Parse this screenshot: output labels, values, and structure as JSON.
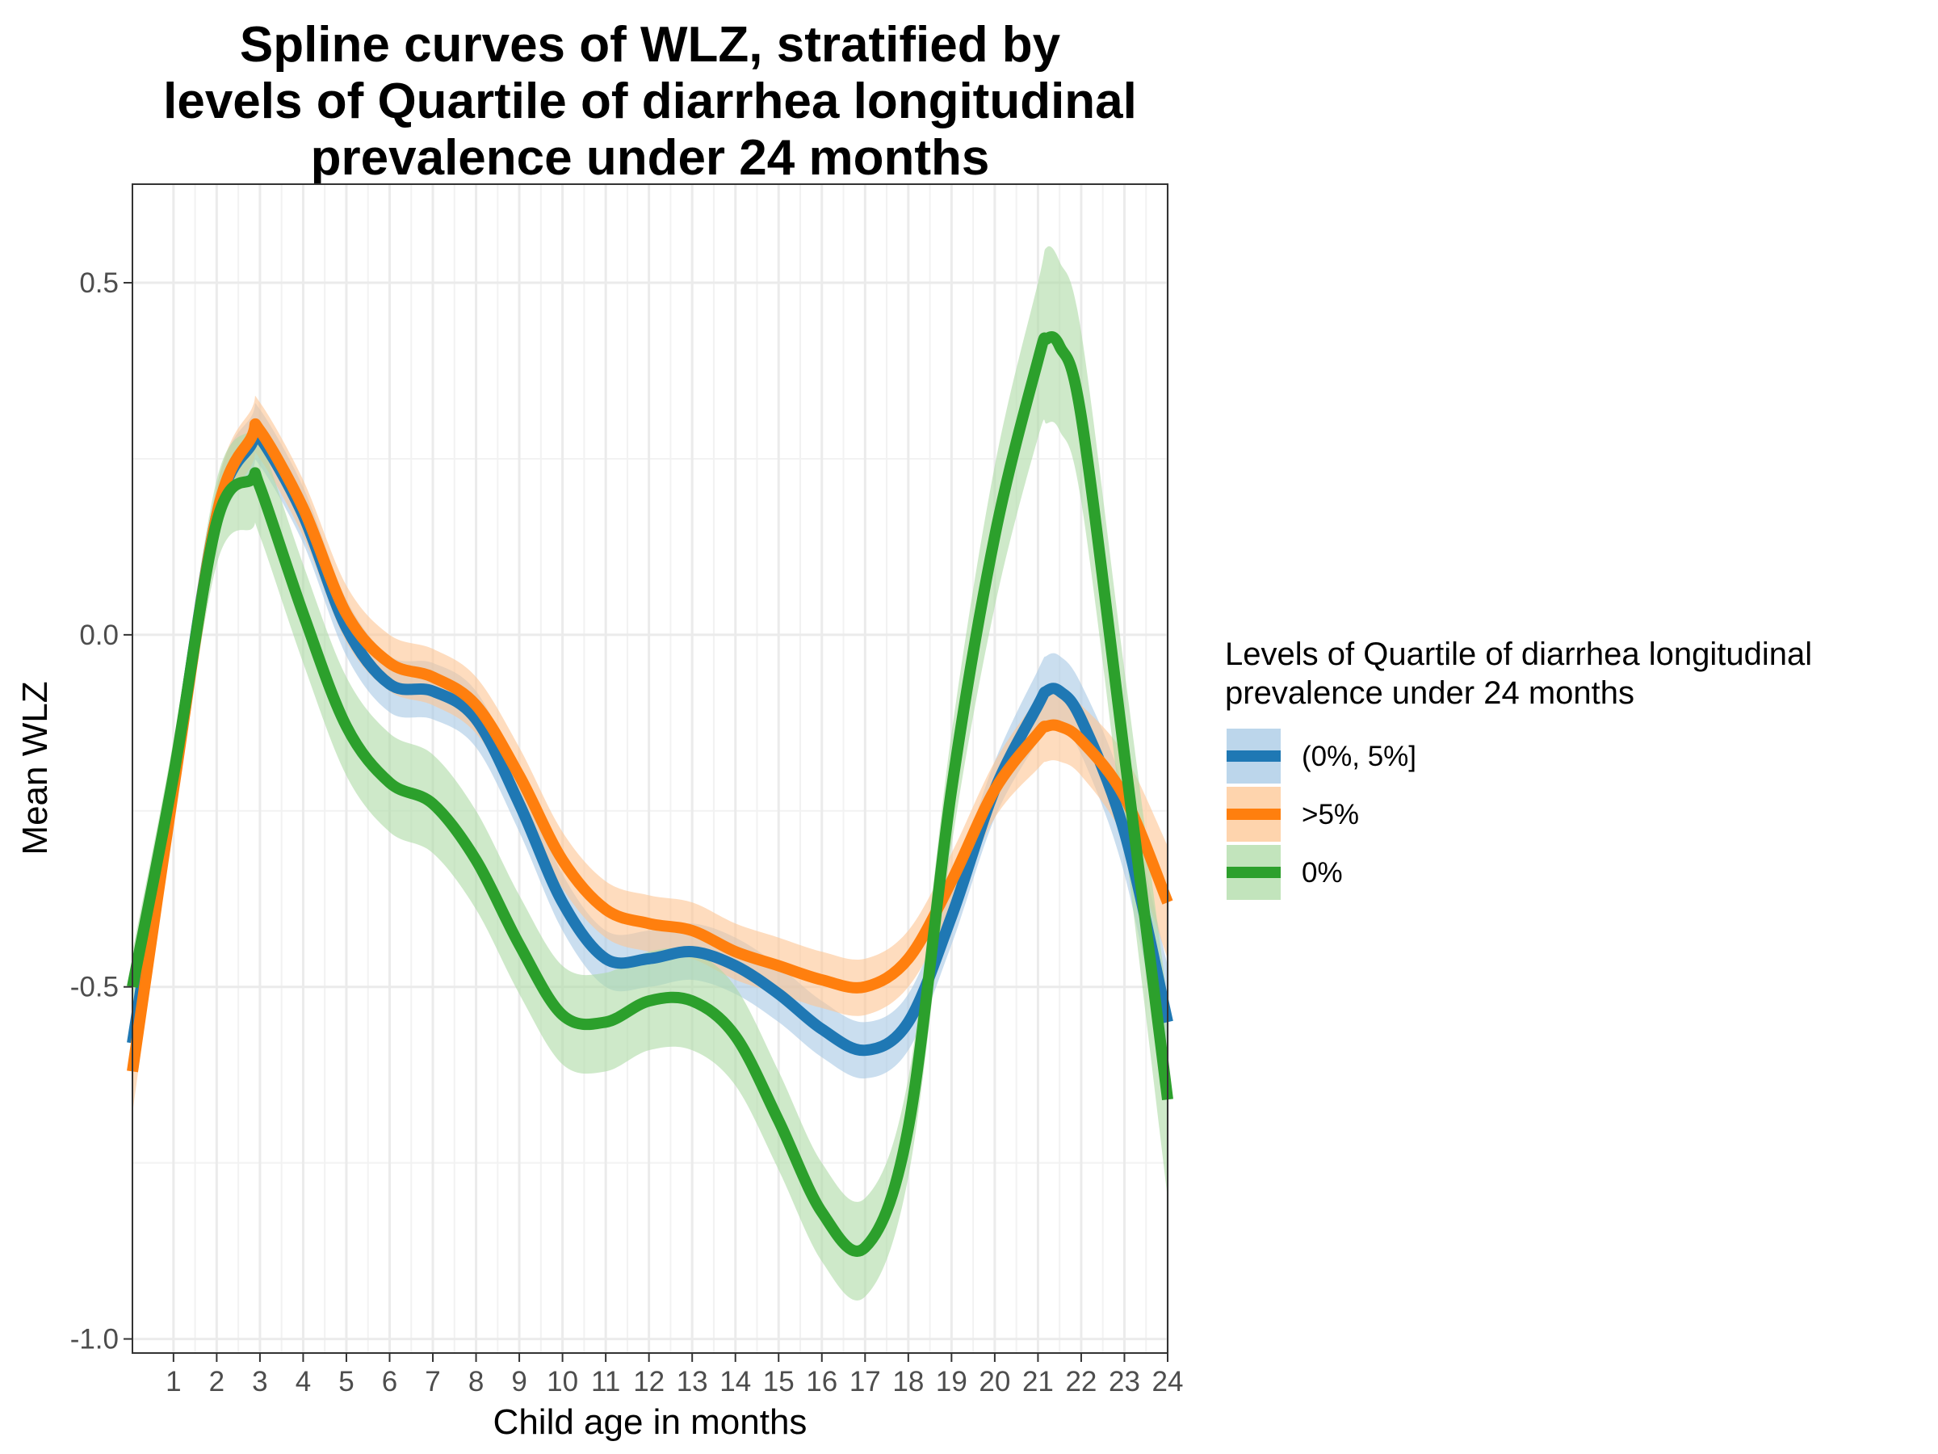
{
  "chart_data": {
    "type": "line",
    "title_lines": [
      "Spline curves of WLZ, stratified by",
      "levels of Quartile of diarrhea longitudinal",
      "prevalence under 24 months"
    ],
    "xlabel": "Child age in months",
    "ylabel": "Mean WLZ",
    "xlim": [
      0.05,
      24
    ],
    "ylim": [
      -1.02,
      0.64
    ],
    "x_ticks": [
      1,
      2,
      3,
      4,
      5,
      6,
      7,
      8,
      9,
      10,
      11,
      12,
      13,
      14,
      15,
      16,
      17,
      18,
      19,
      20,
      21,
      22,
      23,
      24
    ],
    "x_tick_labels": [
      "1",
      "2",
      "3",
      "4",
      "5",
      "6",
      "7",
      "8",
      "9",
      "10",
      "11",
      "12",
      "13",
      "14",
      "15",
      "16",
      "17",
      "18",
      "19",
      "20",
      "21",
      "22",
      "23",
      "24"
    ],
    "y_ticks": [
      -1.0,
      -0.5,
      0.0,
      0.5
    ],
    "y_tick_labels": [
      "-1.0",
      "-0.5",
      "0.0",
      "0.5"
    ],
    "grid": true,
    "legend": {
      "title_lines": [
        "Levels of Quartile of diarrhea longitudinal",
        "prevalence under 24 months"
      ],
      "placement": "right"
    },
    "x": [
      0.05,
      1,
      2,
      2.8,
      3,
      4,
      5,
      6,
      7,
      8,
      9,
      10,
      11,
      12,
      13,
      14,
      15,
      16,
      17,
      18,
      19,
      20,
      21,
      21.2,
      21.5,
      22,
      23,
      24
    ],
    "series": [
      {
        "name": "(0%, 5%]",
        "color": "#1f78b4",
        "band_color": "#a6c8e4",
        "values": [
          -0.58,
          -0.21,
          0.17,
          0.27,
          0.28,
          0.17,
          0.01,
          -0.07,
          -0.08,
          -0.12,
          -0.24,
          -0.38,
          -0.46,
          -0.46,
          -0.45,
          -0.47,
          -0.51,
          -0.56,
          -0.59,
          -0.55,
          -0.4,
          -0.22,
          -0.1,
          -0.08,
          -0.08,
          -0.12,
          -0.28,
          -0.55
        ],
        "lower": [
          -0.62,
          -0.25,
          0.13,
          0.23,
          0.24,
          0.13,
          -0.03,
          -0.11,
          -0.12,
          -0.16,
          -0.28,
          -0.42,
          -0.5,
          -0.5,
          -0.49,
          -0.51,
          -0.55,
          -0.6,
          -0.63,
          -0.59,
          -0.44,
          -0.26,
          -0.15,
          -0.13,
          -0.13,
          -0.17,
          -0.34,
          -0.63
        ],
        "upper": [
          -0.54,
          -0.17,
          0.21,
          0.31,
          0.32,
          0.21,
          0.05,
          -0.03,
          -0.04,
          -0.08,
          -0.2,
          -0.34,
          -0.42,
          -0.42,
          -0.41,
          -0.43,
          -0.47,
          -0.52,
          -0.55,
          -0.51,
          -0.36,
          -0.18,
          -0.05,
          -0.03,
          -0.03,
          -0.07,
          -0.22,
          -0.47
        ]
      },
      {
        "name": ">5%",
        "color": "#ff7f0e",
        "band_color": "#fdc592",
        "values": [
          -0.62,
          -0.22,
          0.17,
          0.28,
          0.29,
          0.18,
          0.03,
          -0.04,
          -0.06,
          -0.1,
          -0.2,
          -0.32,
          -0.39,
          -0.41,
          -0.42,
          -0.45,
          -0.47,
          -0.49,
          -0.5,
          -0.46,
          -0.35,
          -0.22,
          -0.14,
          -0.13,
          -0.13,
          -0.15,
          -0.23,
          -0.38
        ],
        "lower": [
          -0.68,
          -0.26,
          0.13,
          0.24,
          0.25,
          0.14,
          -0.01,
          -0.08,
          -0.1,
          -0.14,
          -0.24,
          -0.36,
          -0.43,
          -0.45,
          -0.46,
          -0.49,
          -0.51,
          -0.53,
          -0.54,
          -0.5,
          -0.39,
          -0.26,
          -0.19,
          -0.18,
          -0.18,
          -0.2,
          -0.29,
          -0.46
        ],
        "upper": [
          -0.56,
          -0.18,
          0.21,
          0.32,
          0.33,
          0.22,
          0.07,
          0.0,
          -0.02,
          -0.06,
          -0.16,
          -0.28,
          -0.35,
          -0.37,
          -0.38,
          -0.41,
          -0.43,
          -0.45,
          -0.46,
          -0.42,
          -0.31,
          -0.18,
          -0.09,
          -0.08,
          -0.08,
          -0.1,
          -0.17,
          -0.3
        ]
      },
      {
        "name": "0%",
        "color": "#2ca02c",
        "band_color": "#aedba5",
        "values": [
          -0.5,
          -0.2,
          0.16,
          0.22,
          0.21,
          0.03,
          -0.13,
          -0.21,
          -0.24,
          -0.32,
          -0.44,
          -0.54,
          -0.55,
          -0.52,
          -0.52,
          -0.57,
          -0.69,
          -0.82,
          -0.87,
          -0.7,
          -0.22,
          0.14,
          0.39,
          0.42,
          0.41,
          0.31,
          -0.17,
          -0.66
        ],
        "lower": [
          -0.55,
          -0.25,
          0.1,
          0.15,
          0.14,
          -0.04,
          -0.2,
          -0.28,
          -0.31,
          -0.39,
          -0.51,
          -0.61,
          -0.62,
          -0.59,
          -0.59,
          -0.64,
          -0.76,
          -0.89,
          -0.94,
          -0.77,
          -0.3,
          0.04,
          0.28,
          0.3,
          0.29,
          0.19,
          -0.29,
          -0.8
        ],
        "upper": [
          -0.45,
          -0.15,
          0.22,
          0.29,
          0.28,
          0.1,
          -0.06,
          -0.14,
          -0.17,
          -0.25,
          -0.37,
          -0.47,
          -0.48,
          -0.45,
          -0.45,
          -0.5,
          -0.62,
          -0.75,
          -0.8,
          -0.63,
          -0.14,
          0.24,
          0.5,
          0.55,
          0.53,
          0.43,
          -0.05,
          -0.52
        ]
      }
    ]
  }
}
